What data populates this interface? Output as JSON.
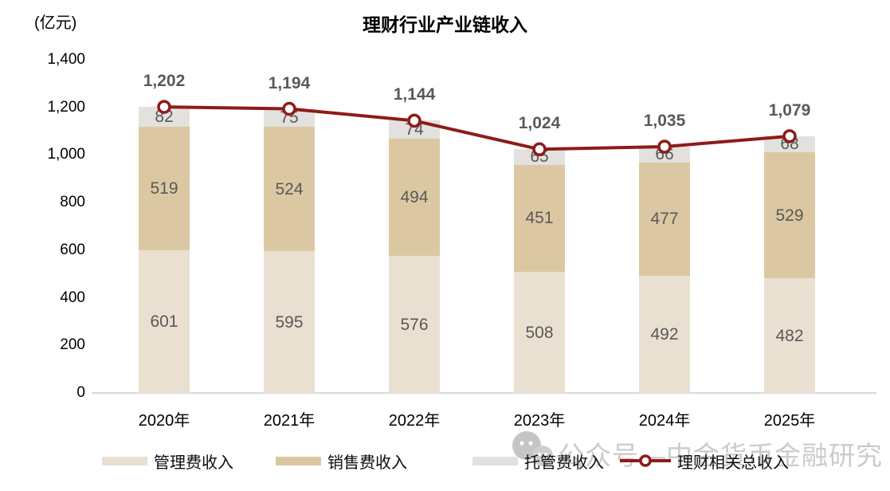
{
  "header": {
    "title": "理财行业产业链收入",
    "unit_label": "(亿元)"
  },
  "chart_data": {
    "type": "bar",
    "subtype": "stacked-bar-with-line",
    "title": "理财行业产业链收入",
    "ylabel": "(亿元)",
    "categories": [
      "2020年",
      "2021年",
      "2022年",
      "2023年",
      "2024年",
      "2025年"
    ],
    "series": [
      {
        "name": "管理费收入",
        "color": "#EAE0D1",
        "values": [
          601,
          595,
          576,
          508,
          492,
          482
        ]
      },
      {
        "name": "销售费收入",
        "color": "#DBC8A3",
        "values": [
          519,
          524,
          494,
          451,
          477,
          529
        ]
      },
      {
        "name": "托管费收入",
        "color": "#E2E1DE",
        "values": [
          82,
          75,
          74,
          65,
          66,
          68
        ]
      }
    ],
    "line_series": {
      "name": "理财相关总收入",
      "color": "#8E1B17",
      "marker": "open-circle",
      "values": [
        1202,
        1194,
        1144,
        1024,
        1035,
        1079
      ],
      "labels": [
        "1,202",
        "1,194",
        "1,144",
        "1,024",
        "1,035",
        "1,079"
      ]
    },
    "ylim": [
      0,
      1400
    ],
    "yticks": [
      {
        "value": 0,
        "label": "0"
      },
      {
        "value": 200,
        "label": "200"
      },
      {
        "value": 400,
        "label": "400"
      },
      {
        "value": 600,
        "label": "600"
      },
      {
        "value": 800,
        "label": "800"
      },
      {
        "value": 1000,
        "label": "1,000"
      },
      {
        "value": 1200,
        "label": "1,200"
      },
      {
        "value": 1400,
        "label": "1,400"
      }
    ],
    "grid": false,
    "legend_position": "bottom"
  },
  "legend": {
    "items": [
      {
        "label": "管理费收入",
        "color": "#EAE0D1"
      },
      {
        "label": "销售费收入",
        "color": "#DBC8A3"
      },
      {
        "label": "托管费收入",
        "color": "#E2E1DE"
      },
      {
        "label": "理财相关总收入",
        "color": "#8E1B17"
      }
    ]
  },
  "watermark": {
    "text": "公众号—中金货币金融研究",
    "icon": "wechat-icon"
  },
  "colors": {
    "axis_line": "#D9D9D9",
    "data_label": "#595959",
    "watermark": "#CBCBCB",
    "line": "#8E1B17"
  }
}
